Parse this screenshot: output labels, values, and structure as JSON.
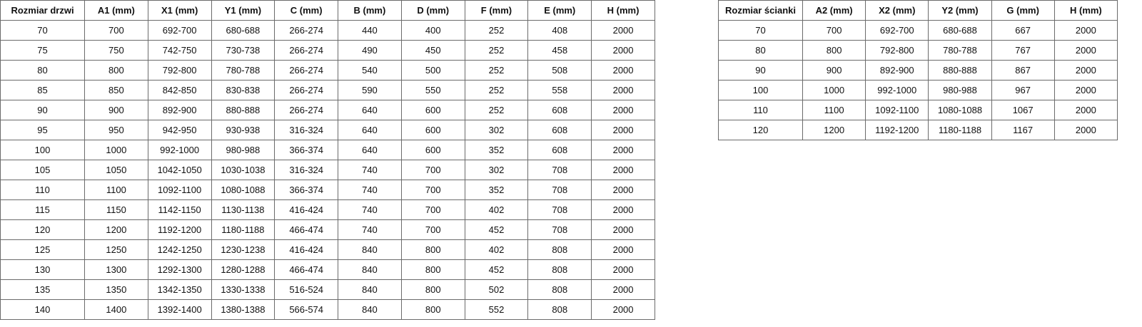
{
  "doors_table": {
    "headers": [
      "Rozmiar drzwi",
      "A1 (mm)",
      "X1 (mm)",
      "Y1 (mm)",
      "C (mm)",
      "B (mm)",
      "D (mm)",
      "F (mm)",
      "E (mm)",
      "H (mm)"
    ],
    "rows": [
      [
        "70",
        "700",
        "692-700",
        "680-688",
        "266-274",
        "440",
        "400",
        "252",
        "408",
        "2000"
      ],
      [
        "75",
        "750",
        "742-750",
        "730-738",
        "266-274",
        "490",
        "450",
        "252",
        "458",
        "2000"
      ],
      [
        "80",
        "800",
        "792-800",
        "780-788",
        "266-274",
        "540",
        "500",
        "252",
        "508",
        "2000"
      ],
      [
        "85",
        "850",
        "842-850",
        "830-838",
        "266-274",
        "590",
        "550",
        "252",
        "558",
        "2000"
      ],
      [
        "90",
        "900",
        "892-900",
        "880-888",
        "266-274",
        "640",
        "600",
        "252",
        "608",
        "2000"
      ],
      [
        "95",
        "950",
        "942-950",
        "930-938",
        "316-324",
        "640",
        "600",
        "302",
        "608",
        "2000"
      ],
      [
        "100",
        "1000",
        "992-1000",
        "980-988",
        "366-374",
        "640",
        "600",
        "352",
        "608",
        "2000"
      ],
      [
        "105",
        "1050",
        "1042-1050",
        "1030-1038",
        "316-324",
        "740",
        "700",
        "302",
        "708",
        "2000"
      ],
      [
        "110",
        "1100",
        "1092-1100",
        "1080-1088",
        "366-374",
        "740",
        "700",
        "352",
        "708",
        "2000"
      ],
      [
        "115",
        "1150",
        "1142-1150",
        "1130-1138",
        "416-424",
        "740",
        "700",
        "402",
        "708",
        "2000"
      ],
      [
        "120",
        "1200",
        "1192-1200",
        "1180-1188",
        "466-474",
        "740",
        "700",
        "452",
        "708",
        "2000"
      ],
      [
        "125",
        "1250",
        "1242-1250",
        "1230-1238",
        "416-424",
        "840",
        "800",
        "402",
        "808",
        "2000"
      ],
      [
        "130",
        "1300",
        "1292-1300",
        "1280-1288",
        "466-474",
        "840",
        "800",
        "452",
        "808",
        "2000"
      ],
      [
        "135",
        "1350",
        "1342-1350",
        "1330-1338",
        "516-524",
        "840",
        "800",
        "502",
        "808",
        "2000"
      ],
      [
        "140",
        "1400",
        "1392-1400",
        "1380-1388",
        "566-574",
        "840",
        "800",
        "552",
        "808",
        "2000"
      ]
    ]
  },
  "walls_table": {
    "headers": [
      "Rozmiar ścianki",
      "A2 (mm)",
      "X2 (mm)",
      "Y2 (mm)",
      "G (mm)",
      "H (mm)"
    ],
    "rows": [
      [
        "70",
        "700",
        "692-700",
        "680-688",
        "667",
        "2000"
      ],
      [
        "80",
        "800",
        "792-800",
        "780-788",
        "767",
        "2000"
      ],
      [
        "90",
        "900",
        "892-900",
        "880-888",
        "867",
        "2000"
      ],
      [
        "100",
        "1000",
        "992-1000",
        "980-988",
        "967",
        "2000"
      ],
      [
        "110",
        "1100",
        "1092-1100",
        "1080-1088",
        "1067",
        "2000"
      ],
      [
        "120",
        "1200",
        "1192-1200",
        "1180-1188",
        "1167",
        "2000"
      ]
    ]
  }
}
